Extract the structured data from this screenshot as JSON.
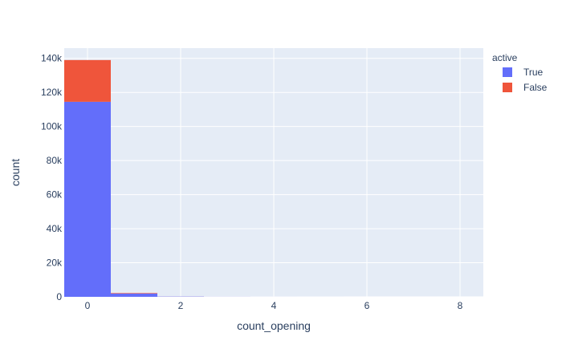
{
  "chart_data": {
    "type": "bar",
    "barmode": "stack",
    "xlabel": "count_opening",
    "ylabel": "count",
    "xlim": [
      -0.5,
      8.5
    ],
    "ylim": [
      0,
      146000
    ],
    "x_ticks": [
      0,
      2,
      4,
      6,
      8
    ],
    "x_tick_labels": [
      "0",
      "2",
      "4",
      "6",
      "8"
    ],
    "y_ticks": [
      0,
      20000,
      40000,
      60000,
      80000,
      100000,
      120000,
      140000
    ],
    "y_tick_labels": [
      "0",
      "20k",
      "40k",
      "60k",
      "80k",
      "100k",
      "120k",
      "140k"
    ],
    "bins": [
      {
        "x0": -0.5,
        "x1": 0.5
      },
      {
        "x0": 0.5,
        "x1": 1.5
      },
      {
        "x0": 1.5,
        "x1": 2.5
      },
      {
        "x0": 2.5,
        "x1": 3.5
      },
      {
        "x0": 3.5,
        "x1": 4.5
      },
      {
        "x0": 4.5,
        "x1": 5.5
      },
      {
        "x0": 5.5,
        "x1": 6.5
      },
      {
        "x0": 6.5,
        "x1": 7.5
      },
      {
        "x0": 7.5,
        "x1": 8.5
      }
    ],
    "series": [
      {
        "name": "True",
        "color": "#636efa",
        "values": [
          114500,
          1900,
          150,
          30,
          10,
          5,
          3,
          2,
          1
        ]
      },
      {
        "name": "False",
        "color": "#ef553b",
        "values": [
          24500,
          300,
          20,
          5,
          2,
          1,
          0,
          0,
          0
        ]
      }
    ],
    "legend": {
      "title": "active",
      "position": "top-right"
    },
    "grid": true,
    "plot_bgcolor": "#e5ecf6",
    "gridcolor": "#ffffff"
  }
}
